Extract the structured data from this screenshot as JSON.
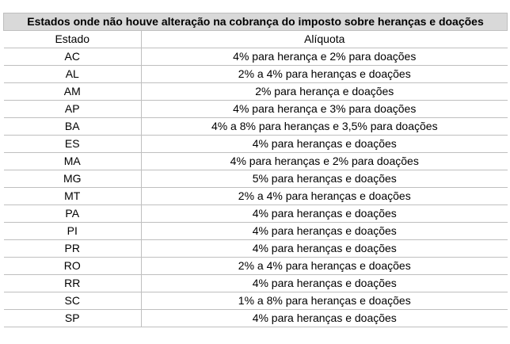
{
  "table": {
    "title": "Estados onde não houve alteração na cobrança do imposto sobre heranças e doações",
    "columns": [
      "Estado",
      "Alíquota"
    ],
    "rows": [
      [
        "AC",
        "4% para herança e 2% para doações"
      ],
      [
        "AL",
        "2% a 4% para heranças e doações"
      ],
      [
        "AM",
        "2% para herança e doações"
      ],
      [
        "AP",
        "4% para herança e 3% para doações"
      ],
      [
        "BA",
        "4% a 8% para heranças e 3,5% para doações"
      ],
      [
        "ES",
        "4% para heranças e doações"
      ],
      [
        "MA",
        "4% para heranças e 2% para doações"
      ],
      [
        "MG",
        "5% para heranças e doações"
      ],
      [
        "MT",
        "2% a 4% para heranças e doações"
      ],
      [
        "PA",
        "4% para heranças e doações"
      ],
      [
        "PI",
        "4% para heranças e doações"
      ],
      [
        "PR",
        "4% para heranças e doações"
      ],
      [
        "RO",
        "2% a 4% para heranças e doações"
      ],
      [
        "RR",
        "4% para heranças e doações"
      ],
      [
        "SC",
        "1% a 8% para heranças e doações"
      ],
      [
        "SP",
        "4% para heranças e doações"
      ]
    ]
  }
}
